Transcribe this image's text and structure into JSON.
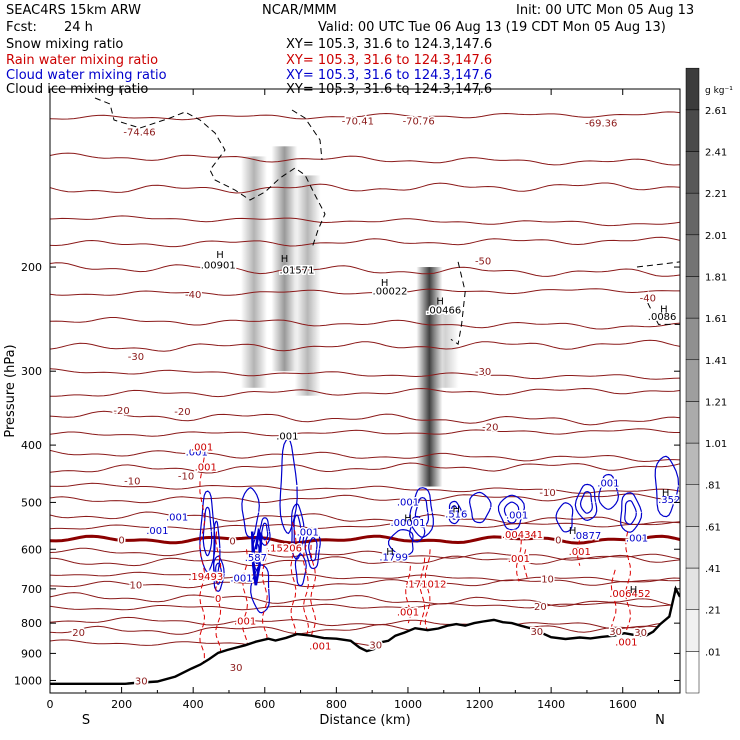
{
  "header": {
    "model": "SEAC4RS 15km ARW",
    "org": "NCAR/MMM",
    "init": "Init: 00 UTC Mon 05 Aug 13",
    "fcst_label": "Fcst:",
    "fcst_value": "24 h",
    "valid": "Valid: 00 UTC Tue 06 Aug 13 (19 CDT Mon 05 Aug 13)",
    "fields": [
      {
        "name": "Snow mixing ratio",
        "xy": "XY= 105.3, 31.6 to 124.3,147.6",
        "color": "#000000"
      },
      {
        "name": "Rain water mixing ratio",
        "xy": "XY= 105.3, 31.6 to 124.3,147.6",
        "color": "#cc0000"
      },
      {
        "name": "Cloud water mixing ratio",
        "xy": "XY= 105.3, 31.6 to 124.3,147.6",
        "color": "#0000cc"
      },
      {
        "name": "Cloud ice mixing ratio",
        "xy": "XY= 105.3, 31.6 to 124.3,147.6",
        "color": "#000000"
      }
    ]
  },
  "chart_data": {
    "type": "cross-section",
    "xlabel": "Distance (km)",
    "ylabel": "Pressure (hPa)",
    "xlim": [
      0,
      1760
    ],
    "ylim": [
      1050,
      100
    ],
    "y_scale": "log",
    "x_ticks": [
      0,
      200,
      400,
      600,
      800,
      1000,
      1200,
      1400,
      1600
    ],
    "y_ticks": [
      200,
      300,
      400,
      500,
      600,
      700,
      800,
      900,
      1000
    ],
    "x_end_labels": {
      "left": "S",
      "right": "N"
    },
    "colorbar": {
      "unit": "g kg⁻¹",
      "labels": [
        ".01",
        ".21",
        ".41",
        ".61",
        ".81",
        "1.01",
        "1.21",
        "1.41",
        "1.61",
        "1.81",
        "2.01",
        "2.21",
        "2.41",
        "2.61"
      ]
    },
    "temperature_labels": [
      {
        "t": "-74.46",
        "x": 250,
        "p": 118
      },
      {
        "t": "-70.41",
        "x": 860,
        "p": 113
      },
      {
        "t": "-70.76",
        "x": 1030,
        "p": 113
      },
      {
        "t": "-69.36",
        "x": 1540,
        "p": 114
      },
      {
        "t": "-50",
        "x": 1210,
        "p": 195
      },
      {
        "t": "-40",
        "x": 400,
        "p": 222
      },
      {
        "t": "-40",
        "x": 1670,
        "p": 225
      },
      {
        "t": "-30",
        "x": 240,
        "p": 283
      },
      {
        "t": "-30",
        "x": 1210,
        "p": 300
      },
      {
        "t": "-20",
        "x": 200,
        "p": 349
      },
      {
        "t": "-20",
        "x": 370,
        "p": 350
      },
      {
        "t": "-20",
        "x": 1230,
        "p": 372
      },
      {
        "t": "-10",
        "x": 230,
        "p": 459
      },
      {
        "t": "-10",
        "x": 380,
        "p": 450
      },
      {
        "t": "-10",
        "x": 1390,
        "p": 480
      },
      {
        "t": "0",
        "x": 200,
        "p": 578
      },
      {
        "t": "0",
        "x": 510,
        "p": 580
      },
      {
        "t": "0",
        "x": 1420,
        "p": 578
      },
      {
        "t": "10",
        "x": 240,
        "p": 688
      },
      {
        "t": "10",
        "x": 1390,
        "p": 672
      },
      {
        "t": "20",
        "x": 80,
        "p": 828
      },
      {
        "t": "20",
        "x": 1370,
        "p": 748
      },
      {
        "t": "30",
        "x": 520,
        "p": 949
      },
      {
        "t": "30",
        "x": 910,
        "p": 870
      },
      {
        "t": "30",
        "x": 1360,
        "p": 825
      },
      {
        "t": "30",
        "x": 1580,
        "p": 825
      },
      {
        "t": "30",
        "x": 1650,
        "p": 828
      },
      {
        "t": "30",
        "x": 255,
        "p": 1000
      }
    ],
    "snow_labels": [
      {
        "v": ".00901",
        "x": 470,
        "p": 198
      },
      {
        "v": ".01571",
        "x": 690,
        "p": 202
      },
      {
        "v": ".00022",
        "x": 950,
        "p": 219
      },
      {
        "v": ".00466",
        "x": 1100,
        "p": 236
      },
      {
        "v": ".0086",
        "x": 1710,
        "p": 242
      }
    ],
    "ice_labels": [
      {
        "v": ".001",
        "x": 663,
        "p": 385
      }
    ],
    "cloud_labels": [
      {
        "v": ".001",
        "x": 410,
        "p": 410
      },
      {
        "v": ".001",
        "x": 355,
        "p": 528
      },
      {
        "v": ".001",
        "x": 300,
        "p": 557
      },
      {
        "v": ".587",
        "x": 575,
        "p": 618
      },
      {
        "v": ".001",
        "x": 535,
        "p": 670
      },
      {
        "v": ".001",
        "x": 720,
        "p": 560
      },
      {
        "v": ".001",
        "x": 1000,
        "p": 498
      },
      {
        "v": ".00001",
        "x": 1000,
        "p": 540
      },
      {
        "v": ".1799",
        "x": 960,
        "p": 617
      },
      {
        "v": ".516",
        "x": 1135,
        "p": 522
      },
      {
        "v": ".001",
        "x": 1305,
        "p": 524
      },
      {
        "v": ".0877",
        "x": 1500,
        "p": 568
      },
      {
        "v": ".001",
        "x": 1560,
        "p": 463
      },
      {
        "v": ".001",
        "x": 1640,
        "p": 573
      },
      {
        "v": ".352",
        "x": 1730,
        "p": 493
      }
    ],
    "rain_labels": [
      {
        "v": ".001",
        "x": 425,
        "p": 402
      },
      {
        "v": ".001",
        "x": 435,
        "p": 435
      },
      {
        "v": ".19493",
        "x": 435,
        "p": 666
      },
      {
        "v": "0",
        "x": 470,
        "p": 725
      },
      {
        "v": ".001",
        "x": 545,
        "p": 792
      },
      {
        "v": ".15206",
        "x": 655,
        "p": 596
      },
      {
        "v": ".001",
        "x": 755,
        "p": 873
      },
      {
        "v": ".004341",
        "x": 1320,
        "p": 565
      },
      {
        "v": ".001",
        "x": 1310,
        "p": 621
      },
      {
        "v": ".001",
        "x": 1480,
        "p": 604
      },
      {
        "v": ".171012",
        "x": 1050,
        "p": 686
      },
      {
        "v": ".001",
        "x": 1000,
        "p": 765
      },
      {
        "v": ".006452",
        "x": 1620,
        "p": 712
      },
      {
        "v": ".001",
        "x": 1610,
        "p": 859
      }
    ],
    "highs": [
      {
        "x": 475,
        "p": 190
      },
      {
        "x": 655,
        "p": 193
      },
      {
        "x": 935,
        "p": 212
      },
      {
        "x": 1090,
        "p": 228
      },
      {
        "x": 1715,
        "p": 235
      },
      {
        "x": 1000,
        "p": 530
      },
      {
        "x": 950,
        "p": 604
      },
      {
        "x": 1135,
        "p": 512
      },
      {
        "x": 1460,
        "p": 557
      },
      {
        "x": 1720,
        "p": 480
      },
      {
        "x": 1630,
        "p": 700
      }
    ],
    "terrain": [
      [
        0,
        1013
      ],
      [
        210,
        1013
      ],
      [
        235,
        1010
      ],
      [
        300,
        1004
      ],
      [
        350,
        985
      ],
      [
        395,
        955
      ],
      [
        420,
        940
      ],
      [
        445,
        920
      ],
      [
        470,
        898
      ],
      [
        495,
        888
      ],
      [
        520,
        880
      ],
      [
        545,
        872
      ],
      [
        575,
        860
      ],
      [
        610,
        850
      ],
      [
        630,
        856
      ],
      [
        660,
        847
      ],
      [
        690,
        835
      ],
      [
        730,
        840
      ],
      [
        765,
        848
      ],
      [
        800,
        850
      ],
      [
        840,
        857
      ],
      [
        865,
        880
      ],
      [
        885,
        892
      ],
      [
        905,
        885
      ],
      [
        920,
        863
      ],
      [
        945,
        857
      ],
      [
        965,
        840
      ],
      [
        990,
        830
      ],
      [
        1020,
        816
      ],
      [
        1055,
        822
      ],
      [
        1085,
        817
      ],
      [
        1110,
        808
      ],
      [
        1135,
        803
      ],
      [
        1160,
        808
      ],
      [
        1185,
        800
      ],
      [
        1210,
        795
      ],
      [
        1240,
        790
      ],
      [
        1265,
        797
      ],
      [
        1290,
        800
      ],
      [
        1315,
        808
      ],
      [
        1345,
        817
      ],
      [
        1375,
        832
      ],
      [
        1400,
        845
      ],
      [
        1440,
        851
      ],
      [
        1480,
        846
      ],
      [
        1510,
        849
      ],
      [
        1540,
        844
      ],
      [
        1575,
        840
      ],
      [
        1605,
        832
      ],
      [
        1640,
        839
      ],
      [
        1665,
        840
      ],
      [
        1685,
        827
      ],
      [
        1705,
        803
      ],
      [
        1730,
        780
      ],
      [
        1748,
        700
      ],
      [
        1760,
        722
      ]
    ]
  }
}
